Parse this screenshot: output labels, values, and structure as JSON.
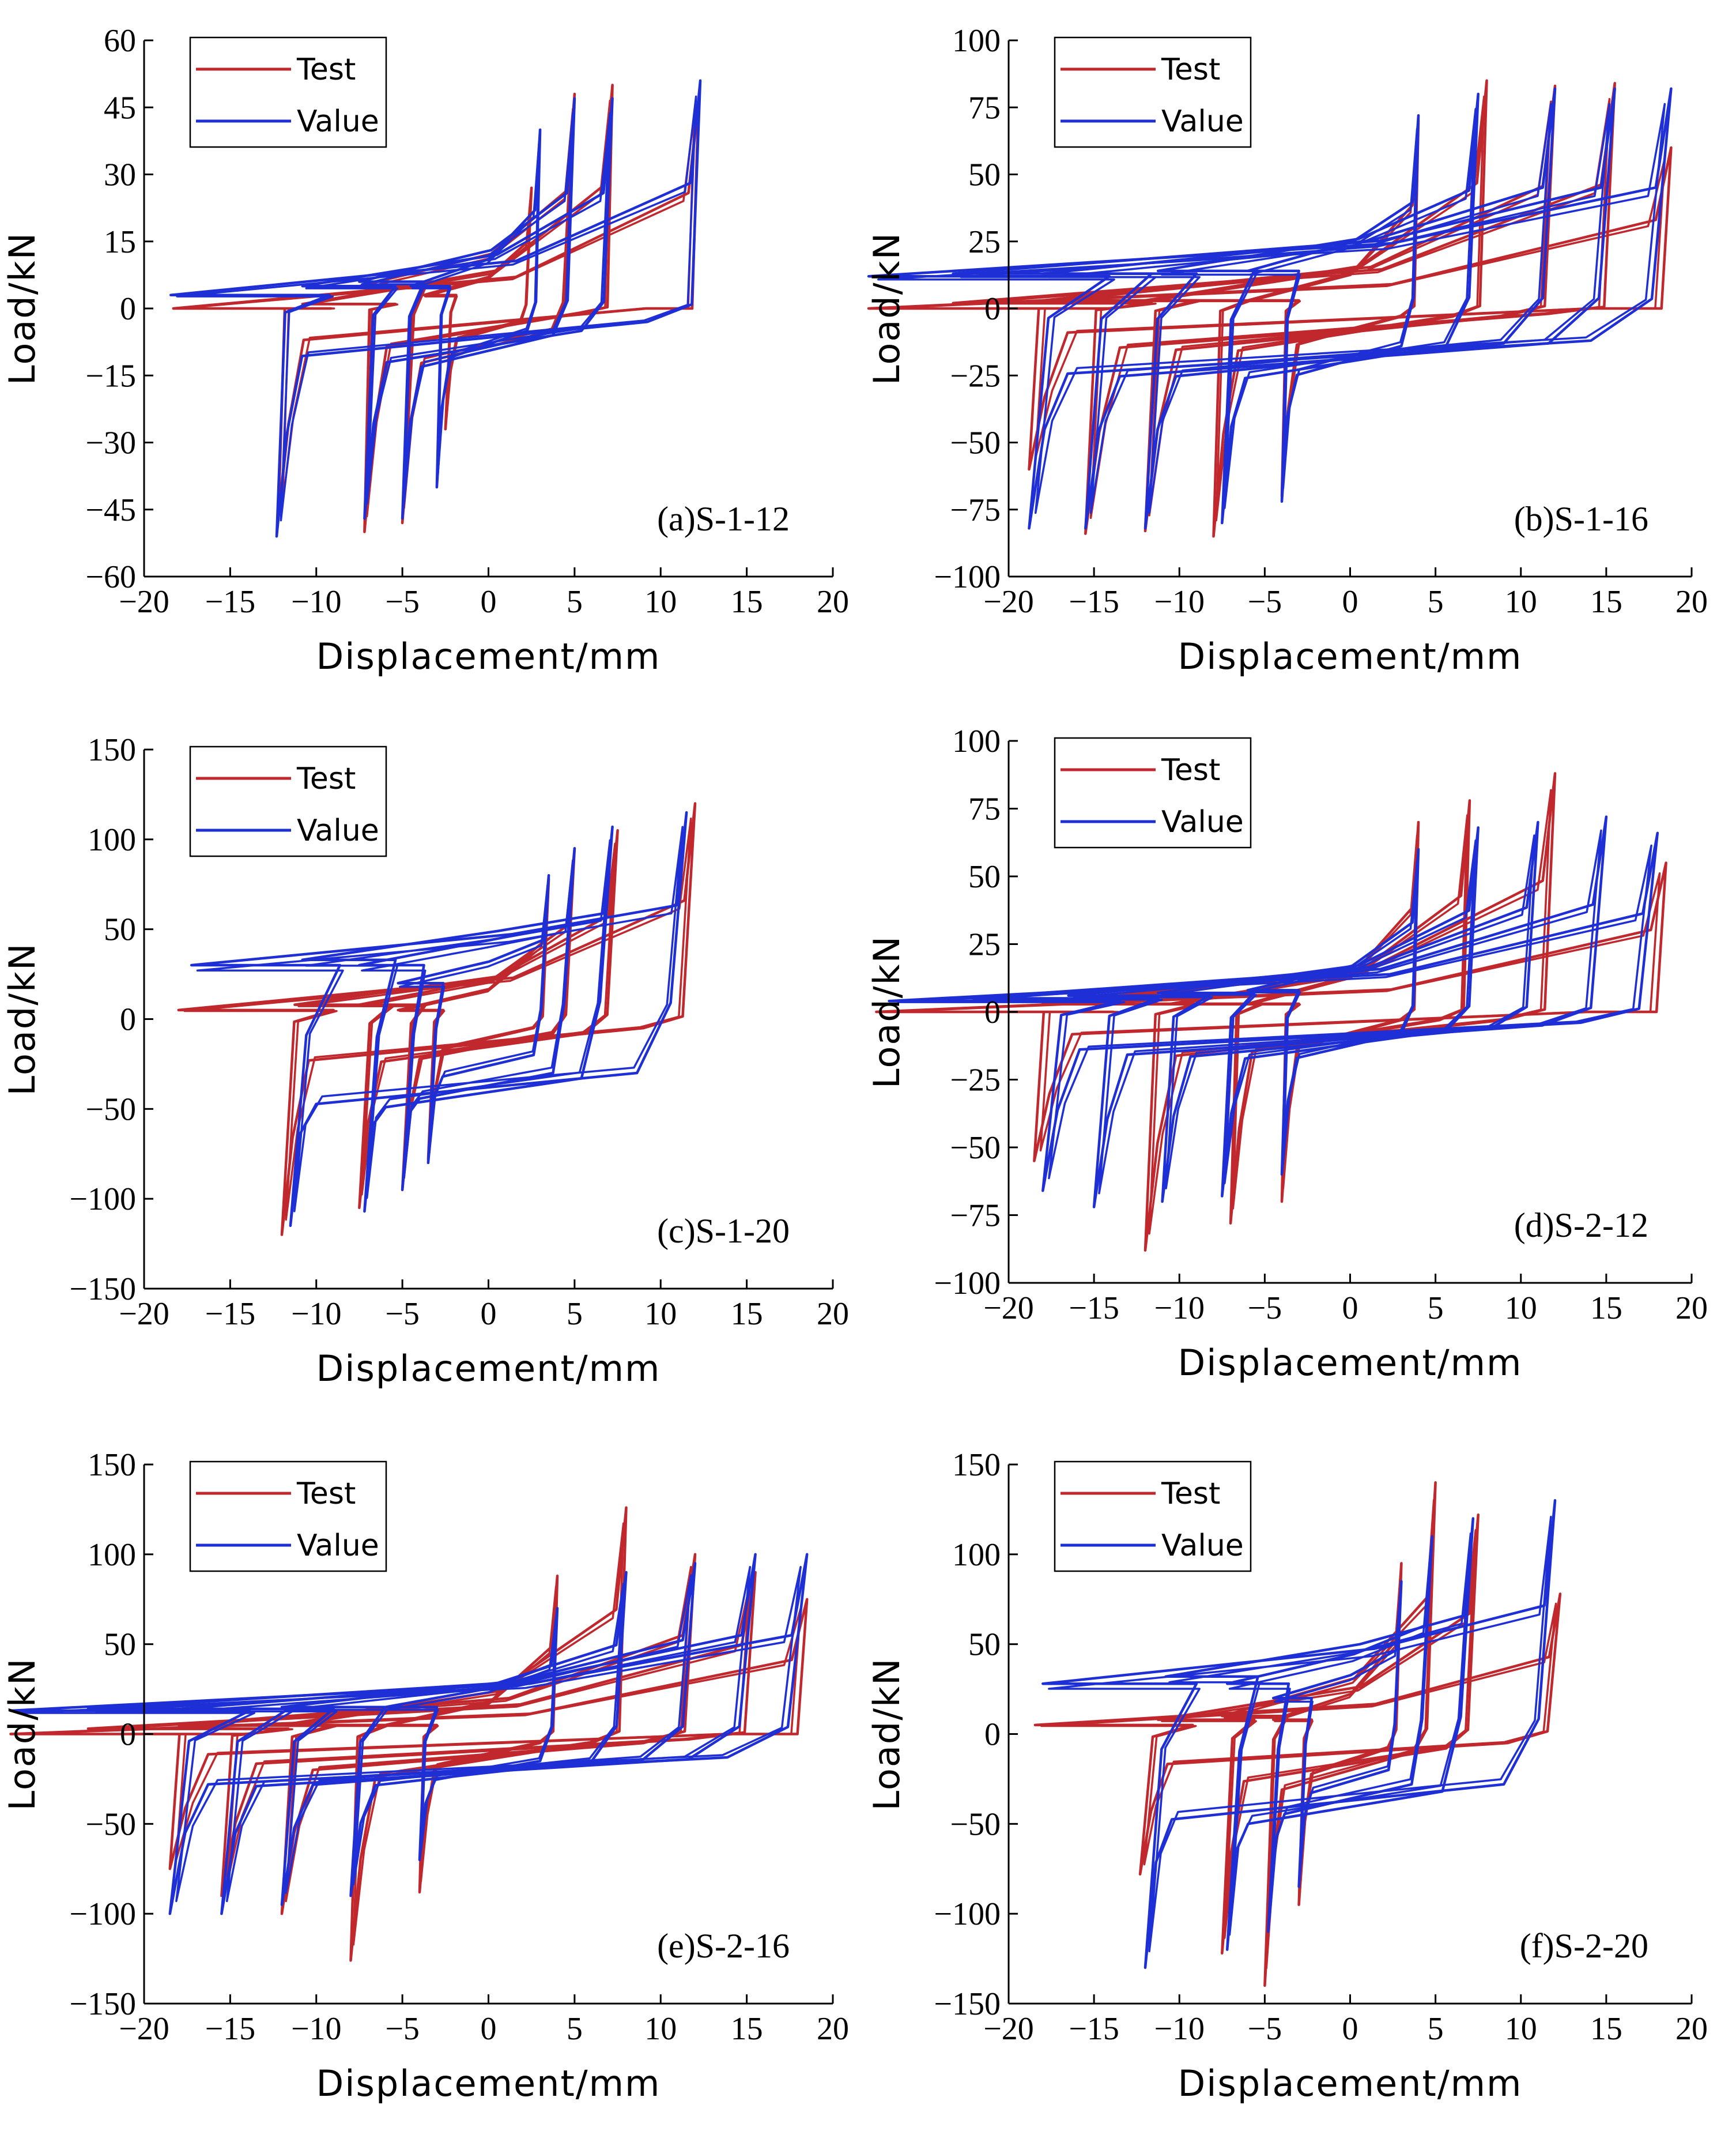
{
  "colors": {
    "test": "#c0282d",
    "value": "#1f2fd6"
  },
  "chart_data": [
    {
      "type": "line",
      "panel_label": "(a)S-1-12",
      "xlabel": "Displacement/mm",
      "ylabel": "Load/kN",
      "xlim": [
        -20,
        20
      ],
      "ylim": [
        -60,
        60
      ],
      "xticks": [
        -20,
        -15,
        -10,
        -5,
        0,
        5,
        10,
        15,
        20
      ],
      "yticks": [
        -60,
        -45,
        -30,
        -15,
        0,
        15,
        30,
        45,
        60
      ],
      "legend": "top-left",
      "series": [
        {
          "name": "Test",
          "loops": [
            {
              "d": 2.5,
              "P": 27,
              "p0": 3,
              "ratio": 0.12,
              "kfrac": 0.25
            },
            {
              "d": 5,
              "P": 48,
              "p0": 5,
              "ratio": 0.12,
              "kfrac": 0.22
            },
            {
              "d": 7.2,
              "P": 50,
              "p0": 1,
              "ratio": 0.04,
              "kfrac": 0.18
            },
            {
              "d": 12.2,
              "P": 47,
              "p0": 0,
              "ratio": 0.03,
              "kfrac": 0.12
            }
          ]
        },
        {
          "name": "Value",
          "loops": [
            {
              "d": 3,
              "P": 40,
              "p0": 5,
              "ratio": 0.08,
              "kfrac": 0.25
            },
            {
              "d": 5,
              "P": 47,
              "p0": 6,
              "ratio": 0.08,
              "kfrac": 0.22
            },
            {
              "d": 7.2,
              "P": 47,
              "p0": 5,
              "ratio": 0.07,
              "kfrac": 0.18
            },
            {
              "d": 12.3,
              "P": 51,
              "p0": 3,
              "ratio": 0.04,
              "kfrac": 0.12
            }
          ]
        }
      ]
    },
    {
      "type": "line",
      "panel_label": "(b)S-1-16",
      "xlabel": "Displacement/mm",
      "ylabel": "Load/kN",
      "xlim": [
        -20,
        20
      ],
      "ylim": [
        -100,
        100
      ],
      "xticks": [
        -20,
        -15,
        -10,
        -5,
        0,
        5,
        10,
        15,
        20
      ],
      "yticks": [
        -100,
        -75,
        -50,
        -25,
        0,
        25,
        50,
        75,
        100
      ],
      "legend": "top-left",
      "series": [
        {
          "name": "Test",
          "loops": [
            {
              "d": 4,
              "P": 70,
              "p0": 3,
              "ratio": 0.06,
              "kfrac": 0.22
            },
            {
              "d": 8,
              "P": 85,
              "p0": 3,
              "ratio": 0.05,
              "kfrac": 0.18
            },
            {
              "d": 12,
              "P": 83,
              "p0": 3,
              "ratio": 0.05,
              "kfrac": 0.15
            },
            {
              "d": 15.5,
              "P": 84,
              "p0": 2,
              "ratio": 0.04,
              "kfrac": 0.13
            },
            {
              "d": 18.8,
              "P": 60,
              "p0": 0,
              "ratio": 0.03,
              "kfrac": 0.12
            }
          ]
        },
        {
          "name": "Value",
          "loops": [
            {
              "d": 4,
              "P": 72,
              "p0": 14,
              "ratio": 0.07,
              "kfrac": 0.22
            },
            {
              "d": 7.5,
              "P": 80,
              "p0": 14,
              "ratio": 0.07,
              "kfrac": 0.18
            },
            {
              "d": 12,
              "P": 82,
              "p0": 13,
              "ratio": 0.06,
              "kfrac": 0.15
            },
            {
              "d": 15.5,
              "P": 82,
              "p0": 13,
              "ratio": 0.06,
              "kfrac": 0.13
            },
            {
              "d": 18.8,
              "P": 82,
              "p0": 12,
              "ratio": 0.06,
              "kfrac": 0.12
            }
          ]
        }
      ]
    },
    {
      "type": "line",
      "panel_label": "(c)S-1-20",
      "xlabel": "Displacement/mm",
      "ylabel": "Load/kN",
      "xlim": [
        -20,
        20
      ],
      "ylim": [
        -150,
        150
      ],
      "xticks": [
        -20,
        -15,
        -10,
        -5,
        0,
        5,
        10,
        15,
        20
      ],
      "yticks": [
        -150,
        -100,
        -50,
        0,
        50,
        100,
        150
      ],
      "legend": "top-left",
      "series": [
        {
          "name": "Test",
          "loops": [
            {
              "d": 3.5,
              "P": 78,
              "p0": 5,
              "ratio": 0.1,
              "kfrac": 0.24
            },
            {
              "d": 5,
              "P": 95,
              "p0": 8,
              "ratio": 0.1,
              "kfrac": 0.2
            },
            {
              "d": 7.5,
              "P": 105,
              "p0": 8,
              "ratio": 0.08,
              "kfrac": 0.17
            },
            {
              "d": 12,
              "P": 120,
              "p0": 5,
              "ratio": 0.06,
              "kfrac": 0.13
            }
          ]
        },
        {
          "name": "Value",
          "loops": [
            {
              "d": 3.5,
              "P": 80,
              "p0": 20,
              "ratio": 0.12,
              "kfrac": 0.24
            },
            {
              "d": 5,
              "P": 95,
              "p0": 30,
              "ratio": 0.12,
              "kfrac": 0.2
            },
            {
              "d": 7.2,
              "P": 107,
              "p0": 33,
              "ratio": 0.1,
              "kfrac": 0.17
            },
            {
              "d": 11.5,
              "P": 115,
              "p0": 30,
              "ratio": 0.08,
              "kfrac": 0.13
            }
          ]
        }
      ]
    },
    {
      "type": "line",
      "panel_label": "(d)S-2-12",
      "xlabel": "Displacement/mm",
      "ylabel": "Load/kN",
      "xlim": [
        -20,
        20
      ],
      "ylim": [
        -100,
        100
      ],
      "xticks": [
        -20,
        -15,
        -10,
        -5,
        0,
        5,
        10,
        15,
        20
      ],
      "yticks": [
        -100,
        -75,
        -50,
        -25,
        0,
        25,
        50,
        75,
        100
      ],
      "legend": "top-left",
      "series": [
        {
          "name": "Test",
          "loops": [
            {
              "d": 4,
              "P": 70,
              "p0": 3,
              "ratio": 0.06,
              "kfrac": 0.22
            },
            {
              "d": 7,
              "P": 78,
              "p0": 3,
              "ratio": 0.05,
              "kfrac": 0.18
            },
            {
              "d": 12,
              "P": 88,
              "p0": 3,
              "ratio": 0.05,
              "kfrac": 0.15
            },
            {
              "d": 18.5,
              "P": 55,
              "p0": 0,
              "ratio": 0.03,
              "kfrac": 0.12
            }
          ]
        },
        {
          "name": "Value",
          "loops": [
            {
              "d": 4,
              "P": 60,
              "p0": 8,
              "ratio": 0.07,
              "kfrac": 0.22
            },
            {
              "d": 7.5,
              "P": 68,
              "p0": 7,
              "ratio": 0.07,
              "kfrac": 0.18
            },
            {
              "d": 11,
              "P": 70,
              "p0": 6,
              "ratio": 0.06,
              "kfrac": 0.15
            },
            {
              "d": 15,
              "P": 72,
              "p0": 5,
              "ratio": 0.06,
              "kfrac": 0.13
            },
            {
              "d": 18,
              "P": 66,
              "p0": 4,
              "ratio": 0.06,
              "kfrac": 0.12
            }
          ]
        }
      ]
    },
    {
      "type": "line",
      "panel_label": "(e)S-2-16",
      "xlabel": "Displacement/mm",
      "ylabel": "Load/kN",
      "xlim": [
        -20,
        20
      ],
      "ylim": [
        -150,
        150
      ],
      "xticks": [
        -20,
        -15,
        -10,
        -5,
        0,
        5,
        10,
        15,
        20
      ],
      "yticks": [
        -150,
        -100,
        -50,
        0,
        50,
        100,
        150
      ],
      "legend": "top-left",
      "series": [
        {
          "name": "Test",
          "loops": [
            {
              "d": 4,
              "P": 88,
              "p0": 5,
              "ratio": 0.06,
              "kfrac": 0.22
            },
            {
              "d": 8,
              "P": 126,
              "p0": 5,
              "ratio": 0.05,
              "kfrac": 0.18
            },
            {
              "d": 12,
              "P": 100,
              "p0": 5,
              "ratio": 0.05,
              "kfrac": 0.15
            },
            {
              "d": 15.5,
              "P": 90,
              "p0": 3,
              "ratio": 0.04,
              "kfrac": 0.13
            },
            {
              "d": 18.5,
              "P": 75,
              "p0": 0,
              "ratio": 0.03,
              "kfrac": 0.12
            }
          ]
        },
        {
          "name": "Value",
          "loops": [
            {
              "d": 4,
              "P": 70,
              "p0": 15,
              "ratio": 0.07,
              "kfrac": 0.22
            },
            {
              "d": 8,
              "P": 90,
              "p0": 15,
              "ratio": 0.07,
              "kfrac": 0.18
            },
            {
              "d": 12,
              "P": 95,
              "p0": 14,
              "ratio": 0.06,
              "kfrac": 0.15
            },
            {
              "d": 15.5,
              "P": 100,
              "p0": 14,
              "ratio": 0.06,
              "kfrac": 0.13
            },
            {
              "d": 18.5,
              "P": 100,
              "p0": 13,
              "ratio": 0.06,
              "kfrac": 0.12
            }
          ]
        }
      ]
    },
    {
      "type": "line",
      "panel_label": "(f)S-2-20",
      "xlabel": "Displacement/mm",
      "ylabel": "Load/kN",
      "xlim": [
        -20,
        20
      ],
      "ylim": [
        -150,
        150
      ],
      "xticks": [
        -20,
        -15,
        -10,
        -5,
        0,
        5,
        10,
        15,
        20
      ],
      "yticks": [
        -150,
        -100,
        -50,
        0,
        50,
        100,
        150
      ],
      "legend": "top-left",
      "series": [
        {
          "name": "Test",
          "loops": [
            {
              "d": 3,
              "P": 95,
              "p0": 8,
              "ratio": 0.1,
              "kfrac": 0.24
            },
            {
              "d": 5,
              "P": 140,
              "p0": 10,
              "ratio": 0.1,
              "kfrac": 0.2
            },
            {
              "d": 7.5,
              "P": 122,
              "p0": 8,
              "ratio": 0.08,
              "kfrac": 0.17
            },
            {
              "d": 12.3,
              "P": 78,
              "p0": 5,
              "ratio": 0.06,
              "kfrac": 0.13
            }
          ]
        },
        {
          "name": "Value",
          "loops": [
            {
              "d": 3,
              "P": 85,
              "p0": 20,
              "ratio": 0.12,
              "kfrac": 0.24
            },
            {
              "d": 4.8,
              "P": 110,
              "p0": 28,
              "ratio": 0.12,
              "kfrac": 0.2
            },
            {
              "d": 7.2,
              "P": 120,
              "p0": 32,
              "ratio": 0.1,
              "kfrac": 0.17
            },
            {
              "d": 12,
              "P": 130,
              "p0": 28,
              "ratio": 0.08,
              "kfrac": 0.13
            }
          ]
        }
      ]
    }
  ]
}
